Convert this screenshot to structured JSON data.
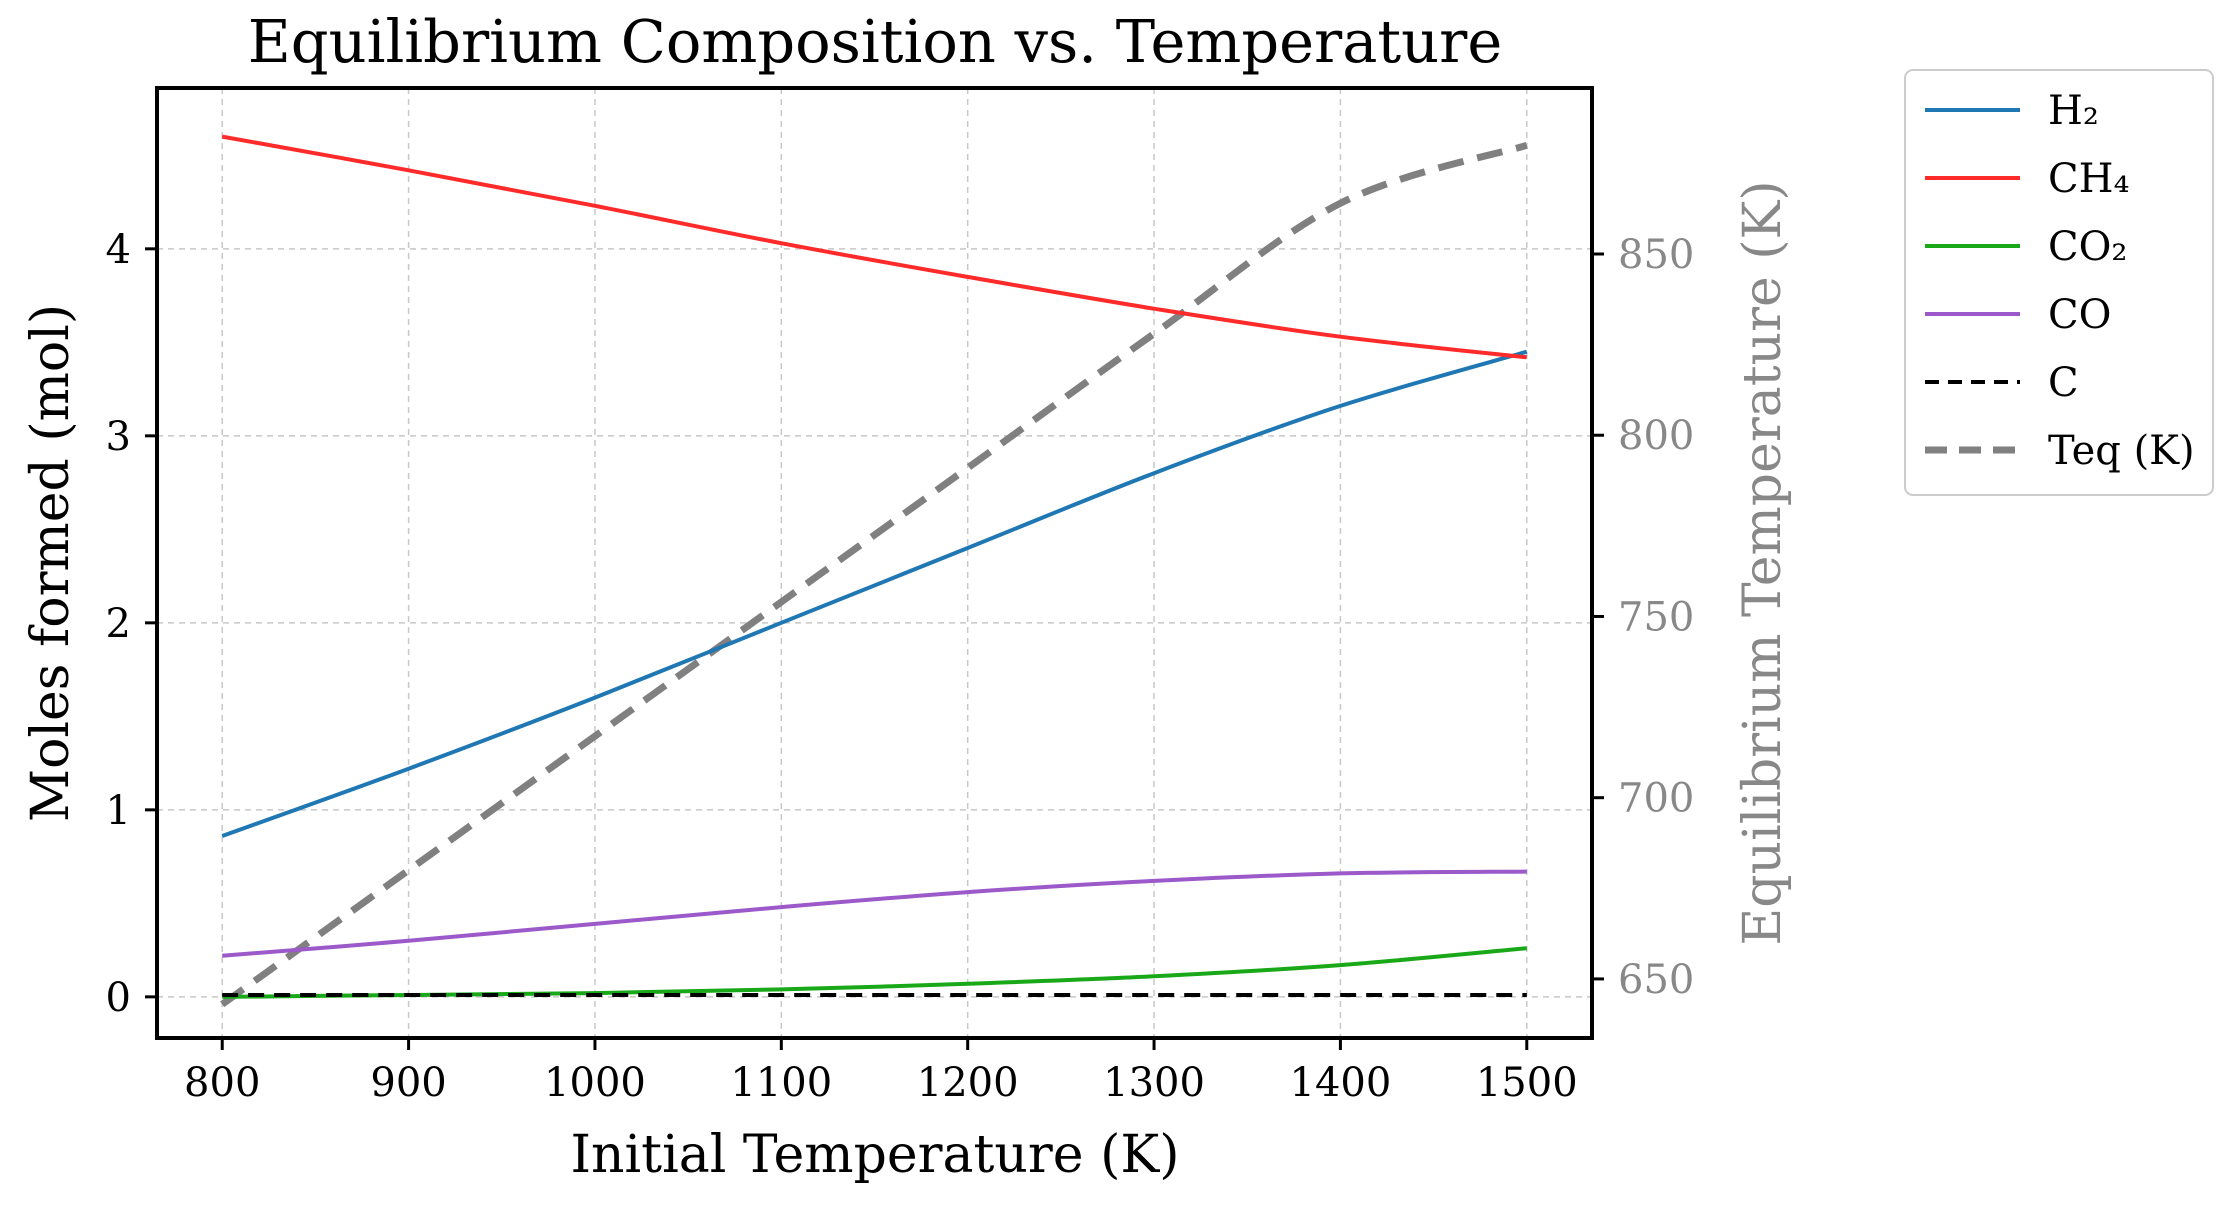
{
  "chart_data": {
    "type": "line",
    "title": "Equilibrium Composition vs. Temperature",
    "xlabel": "Initial Temperature (K)",
    "ylabel": "Moles formed (mol)",
    "y2label": "Equilibrium Temperature (K)",
    "xlim": [
      765,
      1535
    ],
    "ylim": [
      -0.22,
      4.86
    ],
    "y2lim": [
      633.7,
      895.8
    ],
    "xticks": [
      800,
      900,
      1000,
      1100,
      1200,
      1300,
      1400,
      1500
    ],
    "yticks": [
      0,
      1,
      2,
      3,
      4
    ],
    "y2ticks": [
      650,
      700,
      750,
      800,
      850
    ],
    "grid": true,
    "legend_position": "outside-right",
    "x": [
      800,
      900,
      1000,
      1100,
      1200,
      1300,
      1400,
      1500
    ],
    "series": [
      {
        "name": "H₂",
        "axis": "left",
        "color": "#1f77b4",
        "style": "solid",
        "values": [
          0.86,
          1.22,
          1.6,
          2.0,
          2.4,
          2.8,
          3.16,
          3.45
        ]
      },
      {
        "name": "CH₄",
        "axis": "left",
        "color": "#ff2a2a",
        "style": "solid",
        "values": [
          4.6,
          4.42,
          4.23,
          4.03,
          3.85,
          3.68,
          3.53,
          3.42
        ]
      },
      {
        "name": "CO₂",
        "axis": "left",
        "color": "#18a818",
        "style": "solid",
        "values": [
          0.0,
          0.01,
          0.02,
          0.04,
          0.07,
          0.11,
          0.17,
          0.26
        ]
      },
      {
        "name": "CO",
        "axis": "left",
        "color": "#9b59c9",
        "style": "solid",
        "values": [
          0.22,
          0.3,
          0.39,
          0.48,
          0.56,
          0.62,
          0.66,
          0.67
        ]
      },
      {
        "name": "C",
        "axis": "left",
        "color": "#000000",
        "style": "dashed",
        "values": [
          0.01,
          0.01,
          0.01,
          0.01,
          0.01,
          0.01,
          0.01,
          0.01
        ]
      },
      {
        "name": "Teq (K)",
        "axis": "right",
        "color": "#808080",
        "style": "dashed-thick",
        "values": [
          643,
          680,
          717,
          754,
          791,
          828,
          864,
          880
        ]
      }
    ]
  }
}
